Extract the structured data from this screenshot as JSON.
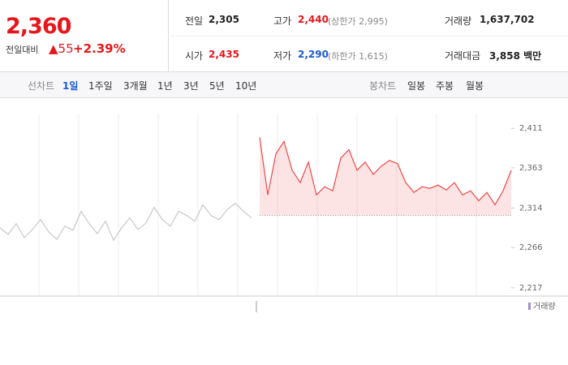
{
  "quote": {
    "price": "2,360",
    "change_label": "전일대비",
    "change": "▲55",
    "change_pct": "+2.39%",
    "fields": [
      {
        "label": "전일",
        "value": "2,305"
      },
      {
        "label": "고가",
        "value": "2,440",
        "note": "(상한가 2,995)"
      },
      {
        "label": "거래량",
        "value": "1,637,702"
      },
      {
        "label": "시가",
        "value": "2,435"
      },
      {
        "label": "저가",
        "value": "2,290",
        "note": "(하한가 1,615)"
      },
      {
        "label": "거래대금",
        "value": "3,858 백만"
      }
    ]
  },
  "tabs": {
    "line_label": "선차트",
    "line_periods": [
      "1일",
      "1주일",
      "3개월",
      "1년",
      "3년",
      "5년",
      "10년"
    ],
    "candle_label": "봉차트",
    "candle_periods": [
      "일봉",
      "주봉",
      "월봉"
    ]
  },
  "chart_data": {
    "type": "line",
    "categories": [
      null,
      null,
      null,
      null,
      null,
      null,
      null,
      null,
      null,
      null,
      null,
      null,
      null,
      null,
      null,
      null,
      null,
      null,
      null,
      null,
      null,
      null,
      null,
      null,
      null,
      null,
      null,
      null,
      null,
      null,
      null,
      null,
      null,
      null,
      null,
      null,
      null,
      null,
      null,
      null,
      null,
      null,
      null,
      null,
      null,
      null,
      null,
      null,
      null,
      null,
      null,
      null,
      null,
      null,
      null,
      null,
      null,
      null,
      null,
      null,
      null,
      null,
      null,
      null
    ],
    "series": [
      {
        "name": null,
        "color": "#c8c8c8",
        "values": [
          2290,
          2282,
          2295,
          2278,
          2288,
          2300,
          2285,
          2276,
          2292,
          2287,
          2310,
          2295,
          2283,
          2298,
          2275,
          2290,
          2302,
          2288,
          2296,
          2315,
          2300,
          2292,
          2310,
          2305,
          2298,
          2318,
          2305,
          2300,
          2312,
          2320,
          2310,
          2302,
          null,
          null,
          null,
          null,
          null,
          null,
          null,
          null,
          null,
          null,
          null,
          null,
          null,
          null,
          null,
          null,
          null,
          null,
          null,
          null,
          null,
          null,
          null,
          null,
          null,
          null,
          null,
          null,
          null,
          null,
          null,
          null
        ]
      },
      {
        "name": null,
        "color": "#f04848",
        "values": [
          null,
          null,
          null,
          null,
          null,
          null,
          null,
          null,
          null,
          null,
          null,
          null,
          null,
          null,
          null,
          null,
          null,
          null,
          null,
          null,
          null,
          null,
          null,
          null,
          null,
          null,
          null,
          null,
          null,
          null,
          null,
          null,
          2400,
          2330,
          2380,
          2395,
          2360,
          2345,
          2370,
          2330,
          2340,
          2335,
          2375,
          2385,
          2360,
          2370,
          2355,
          2365,
          2372,
          2368,
          2345,
          2333,
          2340,
          2338,
          2342,
          2336,
          2345,
          2330,
          2335,
          2323,
          2333,
          2318,
          2335,
          2360
        ]
      }
    ],
    "ylim": [
      2207,
      2429
    ],
    "yticks": [
      {
        "value": 2411,
        "label": "2,411"
      },
      {
        "value": 2363,
        "label": "2,363"
      },
      {
        "value": 2314,
        "label": "2,314"
      },
      {
        "value": 2266,
        "label": "2,266"
      },
      {
        "value": 2217,
        "label": "2,217"
      }
    ],
    "volume_legend": "거래량"
  }
}
